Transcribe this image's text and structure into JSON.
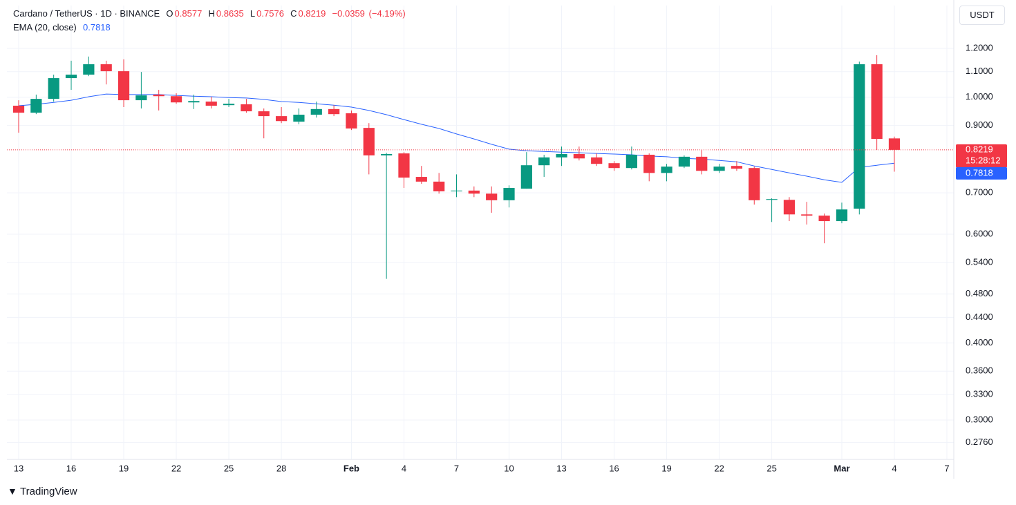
{
  "chart_data": {
    "type": "candlestick",
    "title": "Cardano / TetherUS · 1D · BINANCE",
    "ohlc_keys": [
      "O",
      "H",
      "L",
      "C"
    ],
    "change": "−0.0359",
    "change_pct": "(−4.19%)",
    "ema_name": "EMA (20, close)",
    "currency": "USDT",
    "countdown": "15:28:12",
    "brand": "TradingView",
    "up_color": "#089981",
    "down_color": "#f23645",
    "ema_color": "#2962ff",
    "log_scale": true,
    "grid": true,
    "categories": [
      "13",
      null,
      null,
      "16",
      null,
      null,
      "19",
      null,
      null,
      "22",
      null,
      null,
      "25",
      null,
      null,
      "28",
      null,
      null,
      null,
      "Feb",
      null,
      null,
      "4",
      null,
      null,
      "7",
      null,
      null,
      "10",
      null,
      null,
      "13",
      null,
      null,
      "16",
      null,
      null,
      "19",
      null,
      null,
      "22",
      null,
      null,
      "25",
      null,
      null,
      null,
      "Mar",
      null,
      null,
      "4",
      null,
      null,
      "7"
    ],
    "open": [
      0.969,
      0.944,
      0.994,
      1.074,
      1.088,
      1.131,
      1.102,
      0.989,
      1.01,
      1.004,
      0.981,
      0.984,
      0.971,
      0.974,
      0.949,
      0.932,
      0.913,
      0.937,
      0.957,
      0.942,
      0.892,
      0.805,
      0.811,
      0.743,
      0.73,
      0.704,
      0.706,
      0.698,
      0.681,
      0.711,
      0.776,
      0.799,
      0.809,
      0.799,
      0.782,
      0.768,
      0.807,
      0.754,
      0.772,
      0.801,
      0.76,
      0.774,
      0.768,
      0.682,
      0.682,
      0.646,
      0.643,
      0.63,
      0.66,
      1.131,
      0.8577,
      null,
      null,
      null
    ],
    "high": [
      0.989,
      1.01,
      1.088,
      1.146,
      1.164,
      1.146,
      1.152,
      1.099,
      1.028,
      1.015,
      1.01,
      1.002,
      0.994,
      0.994,
      0.959,
      0.964,
      0.959,
      0.984,
      0.971,
      0.952,
      0.908,
      0.813,
      0.815,
      0.774,
      0.754,
      0.75,
      0.717,
      0.717,
      0.72,
      0.815,
      0.807,
      0.832,
      0.832,
      0.811,
      0.788,
      0.832,
      0.811,
      0.78,
      0.805,
      0.821,
      0.78,
      0.788,
      0.772,
      0.686,
      0.689,
      0.677,
      0.648,
      0.675,
      1.142,
      1.17,
      0.8635,
      null,
      null,
      null
    ],
    "low": [
      0.876,
      0.939,
      0.984,
      1.028,
      1.082,
      1.049,
      0.964,
      0.959,
      0.952,
      0.976,
      0.957,
      0.959,
      0.964,
      0.944,
      0.858,
      0.908,
      0.904,
      0.927,
      0.932,
      0.885,
      0.75,
      0.508,
      0.713,
      0.724,
      0.698,
      0.689,
      0.689,
      0.65,
      0.663,
      0.711,
      0.743,
      0.774,
      0.79,
      0.774,
      0.76,
      0.764,
      0.731,
      0.731,
      0.768,
      0.75,
      0.754,
      0.76,
      0.67,
      0.628,
      0.63,
      0.622,
      0.58,
      0.625,
      0.646,
      0.822,
      0.7576,
      null,
      null,
      null
    ],
    "close": [
      0.944,
      0.994,
      1.074,
      1.088,
      1.131,
      1.102,
      0.989,
      1.007,
      1.004,
      0.981,
      0.986,
      0.969,
      0.976,
      0.949,
      0.932,
      0.915,
      0.937,
      0.957,
      0.939,
      0.89,
      0.805,
      0.809,
      0.741,
      0.73,
      0.704,
      0.706,
      0.698,
      0.681,
      0.713,
      0.776,
      0.799,
      0.809,
      0.796,
      0.78,
      0.768,
      0.807,
      0.754,
      0.772,
      0.801,
      0.76,
      0.772,
      0.766,
      0.681,
      0.684,
      0.646,
      0.643,
      0.63,
      0.658,
      1.131,
      0.856,
      0.8219,
      null,
      null,
      null
    ],
    "ema": [
      0.969,
      0.974,
      0.981,
      0.989,
      1.002,
      1.012,
      1.01,
      1.01,
      1.01,
      1.007,
      1.004,
      1.002,
      0.999,
      0.997,
      0.992,
      0.984,
      0.981,
      0.976,
      0.971,
      0.964,
      0.952,
      0.937,
      0.92,
      0.904,
      0.89,
      0.872,
      0.856,
      0.839,
      0.824,
      0.819,
      0.817,
      0.815,
      0.813,
      0.811,
      0.809,
      0.807,
      0.803,
      0.801,
      0.796,
      0.794,
      0.79,
      0.786,
      0.774,
      0.764,
      0.754,
      0.745,
      0.735,
      0.728,
      0.77,
      0.776,
      0.7818,
      null,
      null,
      null
    ],
    "ylim": [
      0.259,
      1.408
    ],
    "yticks": [
      {
        "value": 1.2,
        "label": "1.2000"
      },
      {
        "value": 1.1,
        "label": "1.1000"
      },
      {
        "value": 1.0,
        "label": "1.0000"
      },
      {
        "value": 0.9,
        "label": "0.9000"
      },
      {
        "value": 0.7,
        "label": "0.7000"
      },
      {
        "value": 0.6,
        "label": "0.6000"
      },
      {
        "value": 0.54,
        "label": "0.5400"
      },
      {
        "value": 0.48,
        "label": "0.4800"
      },
      {
        "value": 0.44,
        "label": "0.4400"
      },
      {
        "value": 0.4,
        "label": "0.4000"
      },
      {
        "value": 0.36,
        "label": "0.3600"
      },
      {
        "value": 0.33,
        "label": "0.3300"
      },
      {
        "value": 0.3,
        "label": "0.3000"
      },
      {
        "value": 0.276,
        "label": "0.2760"
      }
    ]
  }
}
